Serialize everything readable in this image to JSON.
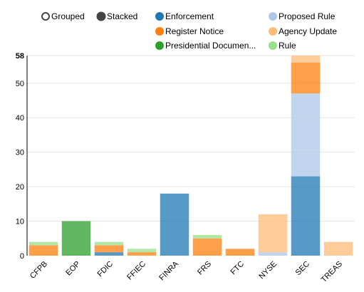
{
  "controls": {
    "grouped_label": "Grouped",
    "stacked_label": "Stacked",
    "selected": "stacked"
  },
  "chart_data": {
    "type": "bar",
    "stacked": true,
    "categories": [
      "CFPB",
      "EOP",
      "FDIC",
      "FFIEC",
      "FINRA",
      "FRS",
      "FTC",
      "NYSE",
      "SEC",
      "TREAS"
    ],
    "series": [
      {
        "name": "Enforcement",
        "color": "#1f77b4",
        "values": [
          0,
          0,
          1,
          0,
          18,
          0,
          0,
          0,
          23,
          0
        ]
      },
      {
        "name": "Proposed Rule",
        "color": "#aec7e8",
        "values": [
          0,
          0,
          0,
          0,
          0,
          0,
          0,
          1,
          24,
          0
        ]
      },
      {
        "name": "Register Notice",
        "color": "#ff7f0e",
        "values": [
          3,
          0,
          2,
          1,
          0,
          5,
          2,
          0,
          9,
          0
        ]
      },
      {
        "name": "Agency Update",
        "color": "#ffbb78",
        "values": [
          0,
          0,
          0,
          0,
          0,
          0,
          0,
          11,
          2,
          4
        ]
      },
      {
        "name": "Presidential Documen...",
        "color": "#2ca02c",
        "values": [
          0,
          10,
          0,
          0,
          0,
          0,
          0,
          0,
          0,
          0
        ]
      },
      {
        "name": "Rule",
        "color": "#98df8a",
        "values": [
          1,
          0,
          1,
          1,
          0,
          1,
          0,
          0,
          0,
          0
        ]
      }
    ],
    "ylim": [
      0,
      58
    ],
    "yticks": [
      0,
      10,
      20,
      30,
      40,
      50,
      58
    ],
    "grid": true,
    "legend_position": "top",
    "title": "",
    "xlabel": "",
    "ylabel": ""
  }
}
